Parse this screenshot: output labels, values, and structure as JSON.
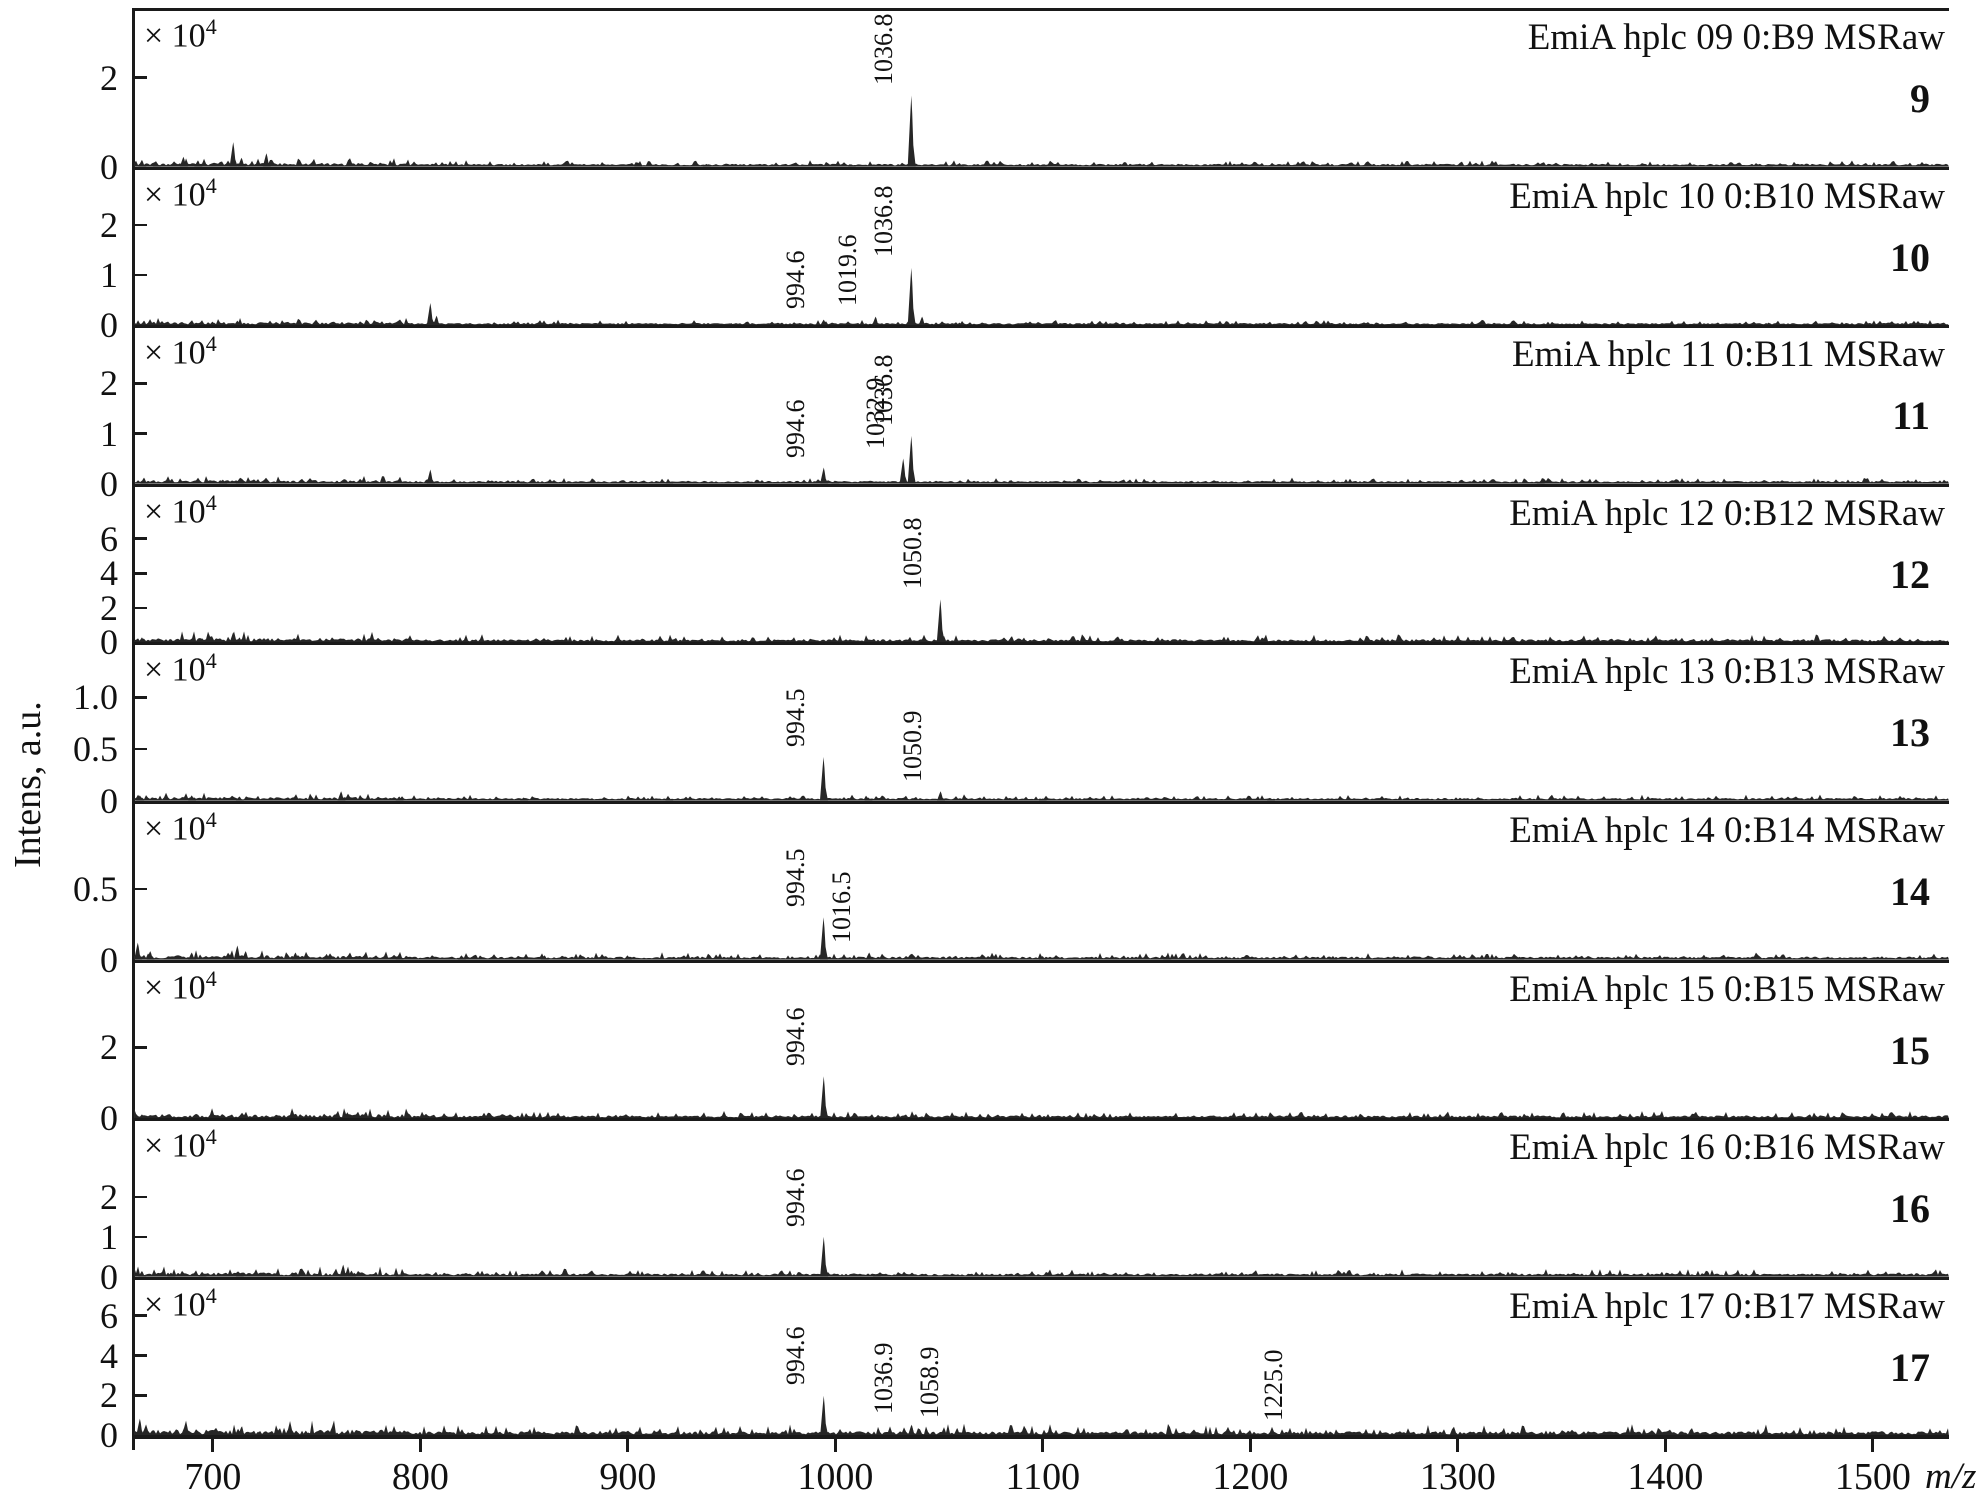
{
  "figure": {
    "ylabel": "Intens, a.u.",
    "xlabel": "m/z",
    "scale_label": "× 10",
    "scale_exponent": "4",
    "colors": {
      "line": "#262626",
      "text": "#111111",
      "background": "#ffffff"
    },
    "x_axis": {
      "min": 662,
      "max": 1537,
      "tick_labels": [
        "700",
        "800",
        "900",
        "1000",
        "1100",
        "1200",
        "1300",
        "1400",
        "1500"
      ]
    }
  },
  "chart_data": [
    {
      "type": "line",
      "panel": 1,
      "title": "EmiA hplc 09 0:B9 MSRaw",
      "number": "9",
      "y_scale": "x10^4",
      "y_ticks": [
        "2",
        "0"
      ],
      "y_max": 3.5,
      "noise_level": 0.05,
      "labeled_peaks": [
        {
          "mz": 1036.8,
          "intensity": 1.6,
          "label": "1036.8"
        }
      ],
      "minor_peaks": [
        [
          666,
          0.15
        ],
        [
          673,
          0.1
        ],
        [
          686,
          0.22
        ],
        [
          693,
          0.14
        ],
        [
          710,
          0.55
        ],
        [
          714,
          0.2
        ],
        [
          726,
          0.3
        ],
        [
          788,
          0.06
        ],
        [
          905,
          0.1
        ],
        [
          938,
          0.06
        ],
        [
          1008,
          0.05
        ],
        [
          1060,
          0.08
        ],
        [
          1100,
          0.05
        ],
        [
          1152,
          0.06
        ],
        [
          1360,
          0.04
        ],
        [
          1450,
          0.05
        ]
      ]
    },
    {
      "type": "line",
      "panel": 2,
      "title": "EmiA hplc 10 0:B10 MSRaw",
      "number": "10",
      "y_scale": "x10^4",
      "y_ticks": [
        "2",
        "1",
        "0"
      ],
      "y_max": 3.1,
      "noise_level": 0.04,
      "labeled_peaks": [
        {
          "mz": 994.6,
          "intensity": 0.12,
          "label": "994.6"
        },
        {
          "mz": 1019.6,
          "intensity": 0.18,
          "label": "1019.6"
        },
        {
          "mz": 1036.8,
          "intensity": 1.15,
          "label": "1036.8"
        }
      ],
      "minor_peaks": [
        [
          667,
          0.1
        ],
        [
          700,
          0.08
        ],
        [
          712,
          0.1
        ],
        [
          735,
          0.06
        ],
        [
          805,
          0.45
        ],
        [
          808,
          0.2
        ],
        [
          870,
          0.05
        ],
        [
          950,
          0.05
        ],
        [
          1042,
          0.18
        ],
        [
          1060,
          0.06
        ],
        [
          1150,
          0.05
        ],
        [
          1250,
          0.04
        ],
        [
          1450,
          0.06
        ]
      ]
    },
    {
      "type": "line",
      "panel": 3,
      "title": "EmiA hplc 11 0:B11 MSRaw",
      "number": "11",
      "y_scale": "x10^4",
      "y_ticks": [
        "2",
        "1",
        "0"
      ],
      "y_max": 3.1,
      "noise_level": 0.04,
      "labeled_peaks": [
        {
          "mz": 994.6,
          "intensity": 0.32,
          "label": "994.6"
        },
        {
          "mz": 1032.9,
          "intensity": 0.5,
          "label": "1032.9"
        },
        {
          "mz": 1036.8,
          "intensity": 0.95,
          "label": "1036.8"
        }
      ],
      "minor_peaks": [
        [
          667,
          0.12
        ],
        [
          705,
          0.08
        ],
        [
          713,
          0.1
        ],
        [
          760,
          0.06
        ],
        [
          805,
          0.28
        ],
        [
          850,
          0.05
        ],
        [
          920,
          0.05
        ],
        [
          1000,
          0.06
        ],
        [
          1085,
          0.07
        ],
        [
          1170,
          0.04
        ],
        [
          1340,
          0.05
        ]
      ]
    },
    {
      "type": "line",
      "panel": 4,
      "title": "EmiA hplc 12 0:B12 MSRaw",
      "number": "12",
      "y_scale": "x10^4",
      "y_ticks": [
        "6",
        "4",
        "2",
        "0"
      ],
      "y_max": 9.0,
      "noise_level": 0.18,
      "labeled_peaks": [
        {
          "mz": 1050.8,
          "intensity": 2.5,
          "label": "1050.8"
        }
      ],
      "minor_peaks": [
        [
          666,
          0.3
        ],
        [
          680,
          0.2
        ],
        [
          695,
          0.25
        ],
        [
          710,
          0.6
        ],
        [
          713,
          0.3
        ],
        [
          726,
          0.2
        ],
        [
          745,
          0.15
        ],
        [
          760,
          0.12
        ],
        [
          790,
          0.1
        ],
        [
          850,
          0.1
        ],
        [
          905,
          0.15
        ],
        [
          955,
          0.1
        ],
        [
          985,
          0.2
        ],
        [
          1010,
          0.12
        ],
        [
          1085,
          0.35
        ],
        [
          1092,
          0.15
        ],
        [
          1150,
          0.12
        ],
        [
          1250,
          0.08
        ],
        [
          1350,
          0.06
        ]
      ]
    },
    {
      "type": "line",
      "panel": 5,
      "title": "EmiA hplc 13 0:B13 MSRaw",
      "number": "13",
      "y_scale": "x10^4",
      "y_ticks": [
        "1.0",
        "0.5",
        "0"
      ],
      "y_max": 1.5,
      "noise_level": 0.02,
      "labeled_peaks": [
        {
          "mz": 994.5,
          "intensity": 0.42,
          "label": "994.5"
        },
        {
          "mz": 1050.9,
          "intensity": 0.09,
          "label": "1050.9"
        }
      ],
      "minor_peaks": [
        [
          665,
          0.05
        ],
        [
          690,
          0.05
        ],
        [
          713,
          0.04
        ],
        [
          762,
          0.09
        ],
        [
          790,
          0.04
        ],
        [
          850,
          0.03
        ],
        [
          920,
          0.03
        ],
        [
          1016,
          0.03
        ],
        [
          1100,
          0.02
        ],
        [
          1210,
          0.02
        ]
      ]
    },
    {
      "type": "line",
      "panel": 6,
      "title": "EmiA hplc 14 0:B14 MSRaw",
      "number": "14",
      "y_scale": "x10^4",
      "y_ticks": [
        "0.5",
        "0"
      ],
      "y_max": 1.1,
      "noise_level": 0.018,
      "labeled_peaks": [
        {
          "mz": 994.5,
          "intensity": 0.3,
          "label": "994.5"
        },
        {
          "mz": 1016.5,
          "intensity": 0.05,
          "label": "1016.5"
        }
      ],
      "minor_peaks": [
        [
          664,
          0.12
        ],
        [
          670,
          0.06
        ],
        [
          690,
          0.05
        ],
        [
          712,
          0.1
        ],
        [
          716,
          0.06
        ],
        [
          740,
          0.05
        ],
        [
          755,
          0.04
        ],
        [
          790,
          0.04
        ],
        [
          820,
          0.03
        ],
        [
          860,
          0.03
        ],
        [
          900,
          0.03
        ],
        [
          950,
          0.03
        ],
        [
          1040,
          0.03
        ],
        [
          1100,
          0.025
        ],
        [
          1160,
          0.03
        ],
        [
          1240,
          0.025
        ],
        [
          1330,
          0.02
        ],
        [
          1420,
          0.02
        ]
      ]
    },
    {
      "type": "line",
      "panel": 7,
      "title": "EmiA hplc 15 0:B15 MSRaw",
      "number": "15",
      "y_scale": "x10^4",
      "y_ticks": [
        "2",
        "0"
      ],
      "y_max": 4.4,
      "noise_level": 0.08,
      "labeled_peaks": [
        {
          "mz": 994.6,
          "intensity": 1.2,
          "label": "994.6"
        }
      ],
      "minor_peaks": [
        [
          666,
          0.12
        ],
        [
          680,
          0.08
        ],
        [
          700,
          0.06
        ],
        [
          713,
          0.07
        ],
        [
          740,
          0.06
        ],
        [
          765,
          0.18
        ],
        [
          770,
          0.08
        ],
        [
          800,
          0.05
        ],
        [
          850,
          0.04
        ],
        [
          1020,
          0.05
        ],
        [
          1100,
          0.04
        ]
      ]
    },
    {
      "type": "line",
      "panel": 8,
      "title": "EmiA hplc 16 0:B16 MSRaw",
      "number": "16",
      "y_scale": "x10^4",
      "y_ticks": [
        "2",
        "1",
        "0"
      ],
      "y_max": 3.9,
      "noise_level": 0.07,
      "labeled_peaks": [
        {
          "mz": 994.6,
          "intensity": 1.0,
          "label": "994.6"
        }
      ],
      "minor_peaks": [
        [
          666,
          0.14
        ],
        [
          680,
          0.1
        ],
        [
          695,
          0.12
        ],
        [
          713,
          0.08
        ],
        [
          740,
          0.07
        ],
        [
          763,
          0.3
        ],
        [
          767,
          0.15
        ],
        [
          790,
          0.06
        ],
        [
          850,
          0.05
        ],
        [
          920,
          0.05
        ],
        [
          1020,
          0.06
        ],
        [
          1090,
          0.04
        ],
        [
          1160,
          0.04
        ]
      ]
    },
    {
      "type": "line",
      "panel": 9,
      "title": "EmiA hplc 17 0:B17 MSRaw",
      "number": "17",
      "y_scale": "x10^4",
      "y_ticks": [
        "6",
        "4",
        "2",
        "0"
      ],
      "y_max": 7.8,
      "noise_level": 0.22,
      "labeled_peaks": [
        {
          "mz": 994.6,
          "intensity": 2.0,
          "label": "994.6"
        },
        {
          "mz": 1036.9,
          "intensity": 0.55,
          "label": "1036.9"
        },
        {
          "mz": 1058.9,
          "intensity": 0.38,
          "label": "1058.9"
        },
        {
          "mz": 1225.0,
          "intensity": 0.22,
          "label": "1225.0"
        }
      ],
      "minor_peaks": [
        [
          665,
          0.85
        ],
        [
          668,
          0.35
        ],
        [
          678,
          0.2
        ],
        [
          690,
          0.15
        ],
        [
          700,
          0.2
        ],
        [
          714,
          0.45
        ],
        [
          722,
          0.2
        ],
        [
          730,
          0.15
        ],
        [
          745,
          0.25
        ],
        [
          760,
          0.15
        ],
        [
          775,
          0.1
        ],
        [
          800,
          0.1
        ],
        [
          830,
          0.08
        ],
        [
          850,
          0.1
        ],
        [
          880,
          0.08
        ],
        [
          910,
          0.08
        ],
        [
          940,
          0.1
        ],
        [
          960,
          0.08
        ],
        [
          1010,
          0.1
        ],
        [
          1080,
          0.08
        ],
        [
          1105,
          0.06
        ],
        [
          1250,
          0.12
        ],
        [
          1270,
          0.08
        ],
        [
          1320,
          0.06
        ],
        [
          1440,
          0.1
        ],
        [
          1460,
          0.06
        ]
      ]
    }
  ]
}
